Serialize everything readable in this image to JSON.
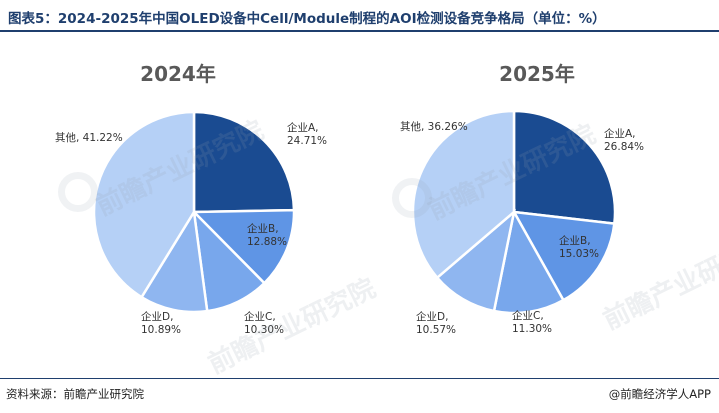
{
  "title": "图表5：2024-2025年中国OLED设备中Cell/Module制程的AOI检测设备竞争格局（单位：%）",
  "source": "资料来源：前瞻产业研究院",
  "credit": "@前瞻经济学人APP",
  "watermark": "前瞻产业研究院",
  "colors": {
    "title": "#1f3f6e",
    "企业A": "#1a4b91",
    "企业B": "#5f95e5",
    "企业C": "#78a7ec",
    "企业D": "#8fb6f0",
    "其他": "#b5d0f6"
  },
  "chart_data": [
    {
      "type": "pie",
      "title": "2024年",
      "slices": [
        {
          "name": "企业A",
          "value": 24.71,
          "label": "企业A,\n24.71%"
        },
        {
          "name": "企业B",
          "value": 12.88,
          "label": "企业B,\n12.88%"
        },
        {
          "name": "企业C",
          "value": 10.3,
          "label": "企业C,\n10.30%"
        },
        {
          "name": "企业D",
          "value": 10.89,
          "label": "企业D,\n10.89%"
        },
        {
          "name": "其他",
          "value": 41.22,
          "label": "其他, 41.22%"
        }
      ]
    },
    {
      "type": "pie",
      "title": "2025年",
      "slices": [
        {
          "name": "企业A",
          "value": 26.84,
          "label": "企业A,\n26.84%"
        },
        {
          "name": "企业B",
          "value": 15.03,
          "label": "企业B,\n15.03%"
        },
        {
          "name": "企业C",
          "value": 11.3,
          "label": "企业C,\n11.30%"
        },
        {
          "name": "企业D",
          "value": 10.57,
          "label": "企业D,\n10.57%"
        },
        {
          "name": "其他",
          "value": 36.26,
          "label": "其他, 36.26%"
        }
      ]
    }
  ]
}
